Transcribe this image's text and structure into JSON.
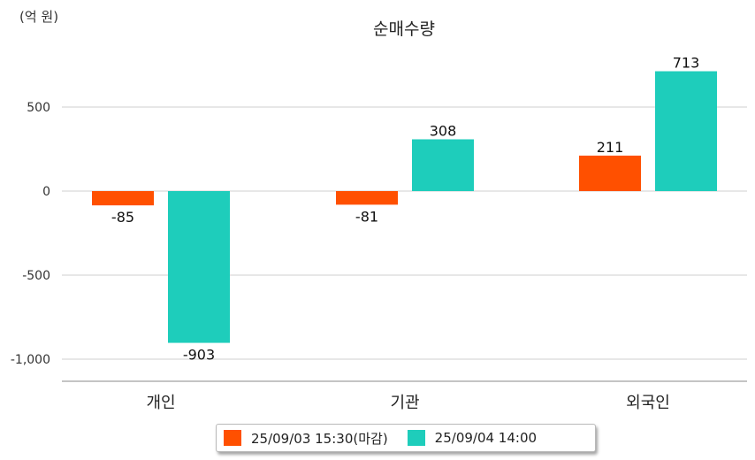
{
  "chart_data": {
    "type": "bar",
    "title": "순매수량",
    "unit_label": "(억 원)",
    "categories": [
      "개인",
      "기관",
      "외국인"
    ],
    "series": [
      {
        "name": "25/09/03 15:30(마감)",
        "color": "#ff5000",
        "values": [
          -85,
          -81,
          211
        ],
        "labels": [
          "-85",
          "-81",
          "211"
        ]
      },
      {
        "name": "25/09/04 14:00",
        "color": "#1ecdbb",
        "values": [
          -903,
          308,
          713
        ],
        "labels": [
          "-903",
          "308",
          "713"
        ]
      }
    ],
    "yticks": [
      {
        "value": 500,
        "label": "500"
      },
      {
        "value": 0,
        "label": "0"
      },
      {
        "value": -500,
        "label": "-500"
      },
      {
        "value": -1000,
        "label": "-1,000"
      }
    ],
    "ylim": [
      -1130,
      800
    ],
    "grid": true,
    "legend_position": "bottom"
  }
}
